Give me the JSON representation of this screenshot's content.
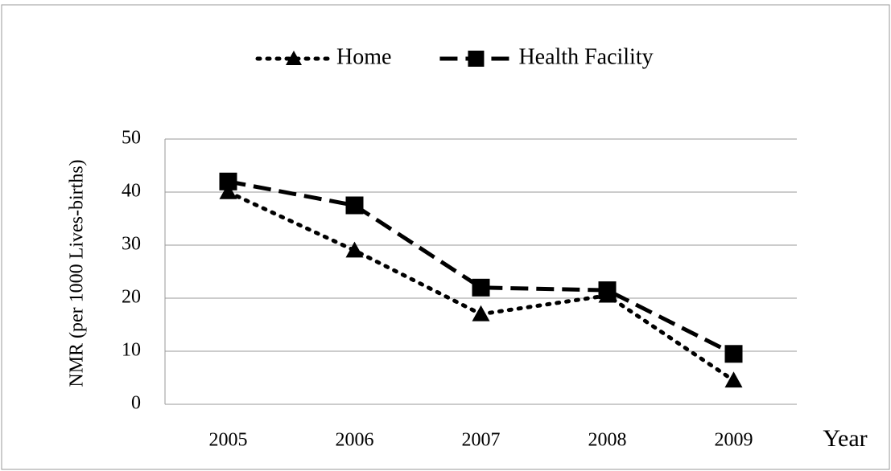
{
  "chart_data": {
    "type": "line",
    "categories": [
      "2005",
      "2006",
      "2007",
      "2008",
      "2009"
    ],
    "series": [
      {
        "name": "Home",
        "color": "#000000",
        "dash": "dotted",
        "marker": "triangle",
        "values": [
          40,
          29,
          17,
          20.5,
          4.5
        ]
      },
      {
        "name": "Health Facility",
        "color": "#000000",
        "dash": "dashed",
        "marker": "square",
        "values": [
          42,
          37.5,
          22,
          21.5,
          9.5
        ]
      }
    ],
    "xlabel": "Year",
    "ylabel": "NMR (per 1000 Lives-births)",
    "ylim": [
      0,
      50
    ],
    "yticks": [
      0,
      10,
      20,
      30,
      40,
      50
    ],
    "grid": true,
    "legend": "top"
  }
}
